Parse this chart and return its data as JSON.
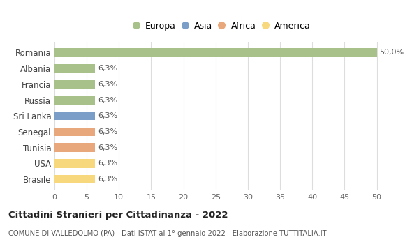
{
  "categories": [
    "Brasile",
    "USA",
    "Tunisia",
    "Senegal",
    "Sri Lanka",
    "Russia",
    "Francia",
    "Albania",
    "Romania"
  ],
  "values": [
    6.3,
    6.3,
    6.3,
    6.3,
    6.3,
    6.3,
    6.3,
    6.3,
    50.0
  ],
  "colors": [
    "#f7d87c",
    "#f7d87c",
    "#e8a87c",
    "#e8a87c",
    "#7b9ec8",
    "#a8c18a",
    "#a8c18a",
    "#a8c18a",
    "#a8c18a"
  ],
  "labels": [
    "6,3%",
    "6,3%",
    "6,3%",
    "6,3%",
    "6,3%",
    "6,3%",
    "6,3%",
    "6,3%",
    "50,0%"
  ],
  "xlim": [
    0,
    52
  ],
  "xticks": [
    0,
    5,
    10,
    15,
    20,
    25,
    30,
    35,
    40,
    45,
    50
  ],
  "legend_items": [
    {
      "label": "Europa",
      "color": "#a8c18a"
    },
    {
      "label": "Asia",
      "color": "#7b9ec8"
    },
    {
      "label": "Africa",
      "color": "#e8a87c"
    },
    {
      "label": "America",
      "color": "#f7d87c"
    }
  ],
  "title": "Cittadini Stranieri per Cittadinanza - 2022",
  "subtitle": "COMUNE DI VALLEDOLMO (PA) - Dati ISTAT al 1° gennaio 2022 - Elaborazione TUTTITALIA.IT",
  "background_color": "#ffffff",
  "grid_color": "#dddddd"
}
